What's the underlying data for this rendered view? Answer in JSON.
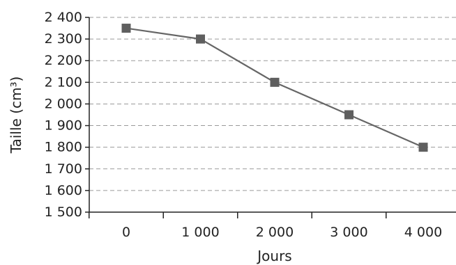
{
  "chart_data": {
    "type": "line",
    "title": "",
    "xlabel": "Jours",
    "ylabel": "Taille (cm³)",
    "x": [
      0,
      1000,
      2000,
      3000,
      4000
    ],
    "x_tick_labels": [
      "0",
      "1 000",
      "2 000",
      "3 000",
      "4 000"
    ],
    "y_ticks": [
      1500,
      1600,
      1700,
      1800,
      1900,
      2000,
      2100,
      2200,
      2300,
      2400
    ],
    "y_tick_labels": [
      "1 500",
      "1 600",
      "1 700",
      "1 800",
      "1 900",
      "2 000",
      "2 100",
      "2 200",
      "2 300",
      "2 400"
    ],
    "ylim": [
      1500,
      2400
    ],
    "series": [
      {
        "values": [
          2350,
          2300,
          2100,
          1950,
          1800
        ]
      }
    ],
    "grid": "horizontal dashed",
    "marker": "square",
    "line_color": "#666666",
    "marker_color": "#5f5f5f",
    "grid_color": "#9a9a9a"
  }
}
